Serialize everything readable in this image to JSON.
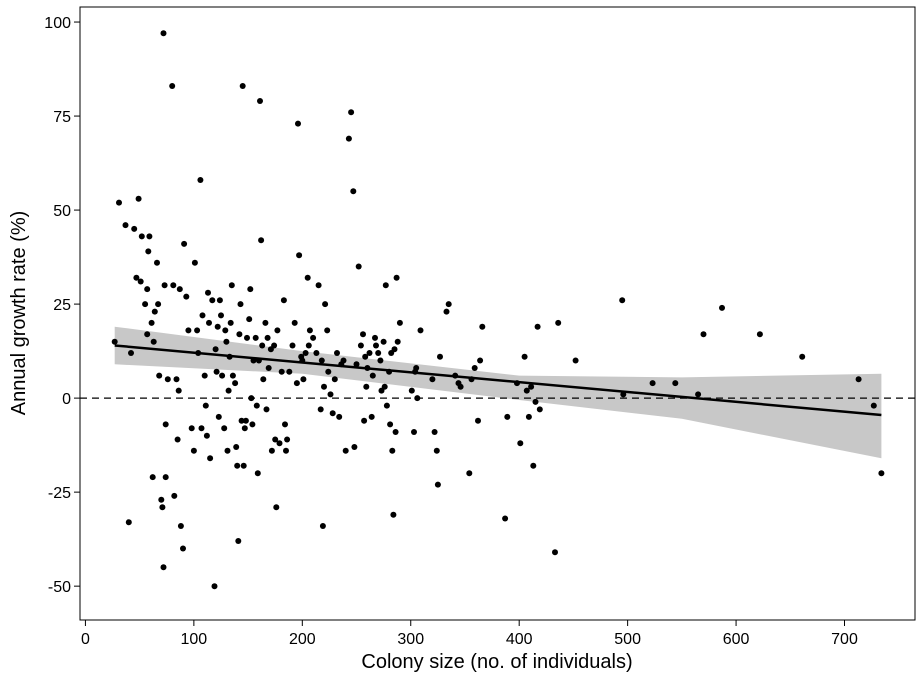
{
  "chart_data": {
    "type": "scatter",
    "title": "",
    "xlabel": "Colony size (no. of individuals)",
    "ylabel": "Annual growth rate (%)",
    "xlim": [
      -5,
      765
    ],
    "ylim": [
      -59,
      104
    ],
    "x_ticks": [
      0,
      100,
      200,
      300,
      400,
      500,
      600,
      700
    ],
    "y_ticks": [
      -50,
      -25,
      0,
      25,
      50,
      75,
      100
    ],
    "grid": false,
    "legend": "none",
    "reference_line": {
      "y": 0,
      "style": "dashed",
      "color": "#000000"
    },
    "fit_line": {
      "x_start": 27,
      "y_start": 14.0,
      "x_end": 734,
      "y_end": -4.5,
      "color": "#000000"
    },
    "confidence_band": {
      "x": [
        27,
        200,
        400,
        550,
        734
      ],
      "lower": [
        9.0,
        6.5,
        -0.5,
        -5.5,
        -16.0
      ],
      "upper": [
        19.0,
        12.5,
        6.0,
        5.5,
        6.5
      ],
      "color": "#c8c8c8"
    },
    "point_color": "#000000",
    "series": [
      {
        "points": [
          [
            27,
            15
          ],
          [
            31,
            52
          ],
          [
            37,
            46
          ],
          [
            40,
            -33
          ],
          [
            42,
            12
          ],
          [
            45,
            45
          ],
          [
            47,
            32
          ],
          [
            49,
            53
          ],
          [
            51,
            31
          ],
          [
            52,
            43
          ],
          [
            55,
            25
          ],
          [
            57,
            17
          ],
          [
            57,
            29
          ],
          [
            58,
            39
          ],
          [
            59,
            43
          ],
          [
            61,
            20
          ],
          [
            62,
            -21
          ],
          [
            63,
            15
          ],
          [
            64,
            23
          ],
          [
            66,
            36
          ],
          [
            67,
            25
          ],
          [
            68,
            6
          ],
          [
            70,
            -27
          ],
          [
            71,
            -29
          ],
          [
            72,
            -45
          ],
          [
            72,
            97
          ],
          [
            73,
            30
          ],
          [
            74,
            -21
          ],
          [
            74,
            -7
          ],
          [
            76,
            5
          ],
          [
            80,
            83
          ],
          [
            81,
            30
          ],
          [
            82,
            -26
          ],
          [
            84,
            5
          ],
          [
            85,
            -11
          ],
          [
            86,
            2
          ],
          [
            87,
            29
          ],
          [
            88,
            -34
          ],
          [
            90,
            -40
          ],
          [
            91,
            41
          ],
          [
            93,
            27
          ],
          [
            95,
            18
          ],
          [
            98,
            -8
          ],
          [
            100,
            -14
          ],
          [
            101,
            36
          ],
          [
            103,
            18
          ],
          [
            104,
            12
          ],
          [
            106,
            58
          ],
          [
            107,
            -8
          ],
          [
            108,
            22
          ],
          [
            110,
            6
          ],
          [
            111,
            -2
          ],
          [
            112,
            -10
          ],
          [
            113,
            28
          ],
          [
            114,
            20
          ],
          [
            115,
            -16
          ],
          [
            117,
            26
          ],
          [
            119,
            -50
          ],
          [
            120,
            13
          ],
          [
            121,
            7
          ],
          [
            122,
            19
          ],
          [
            123,
            -5
          ],
          [
            124,
            26
          ],
          [
            125,
            22
          ],
          [
            126,
            6
          ],
          [
            128,
            -8
          ],
          [
            129,
            18
          ],
          [
            130,
            15
          ],
          [
            131,
            -14
          ],
          [
            132,
            2
          ],
          [
            133,
            11
          ],
          [
            134,
            20
          ],
          [
            135,
            30
          ],
          [
            136,
            6
          ],
          [
            138,
            4
          ],
          [
            139,
            -13
          ],
          [
            140,
            -18
          ],
          [
            141,
            -38
          ],
          [
            142,
            17
          ],
          [
            143,
            25
          ],
          [
            144,
            -6
          ],
          [
            145,
            83
          ],
          [
            146,
            -18
          ],
          [
            147,
            -8
          ],
          [
            148,
            -6
          ],
          [
            149,
            16
          ],
          [
            151,
            21
          ],
          [
            152,
            29
          ],
          [
            153,
            0
          ],
          [
            154,
            -7
          ],
          [
            155,
            10
          ],
          [
            157,
            16
          ],
          [
            158,
            -2
          ],
          [
            159,
            -20
          ],
          [
            160,
            10
          ],
          [
            161,
            79
          ],
          [
            162,
            42
          ],
          [
            163,
            14
          ],
          [
            164,
            5
          ],
          [
            166,
            20
          ],
          [
            167,
            -3
          ],
          [
            168,
            16
          ],
          [
            169,
            8
          ],
          [
            171,
            13
          ],
          [
            172,
            -14
          ],
          [
            174,
            14
          ],
          [
            175,
            -11
          ],
          [
            176,
            -29
          ],
          [
            177,
            18
          ],
          [
            179,
            -12
          ],
          [
            181,
            7
          ],
          [
            183,
            26
          ],
          [
            184,
            -7
          ],
          [
            185,
            -14
          ],
          [
            186,
            -11
          ],
          [
            188,
            7
          ],
          [
            191,
            14
          ],
          [
            193,
            20
          ],
          [
            195,
            4
          ],
          [
            196,
            73
          ],
          [
            197,
            38
          ],
          [
            199,
            11
          ],
          [
            200,
            10
          ],
          [
            201,
            5
          ],
          [
            203,
            12
          ],
          [
            205,
            32
          ],
          [
            206,
            14
          ],
          [
            207,
            18
          ],
          [
            210,
            16
          ],
          [
            213,
            12
          ],
          [
            215,
            30
          ],
          [
            217,
            -3
          ],
          [
            218,
            10
          ],
          [
            219,
            -34
          ],
          [
            220,
            3
          ],
          [
            221,
            25
          ],
          [
            223,
            18
          ],
          [
            224,
            7
          ],
          [
            226,
            1
          ],
          [
            228,
            -4
          ],
          [
            230,
            5
          ],
          [
            232,
            12
          ],
          [
            234,
            -5
          ],
          [
            236,
            9
          ],
          [
            238,
            10
          ],
          [
            240,
            -14
          ],
          [
            243,
            69
          ],
          [
            245,
            76
          ],
          [
            247,
            55
          ],
          [
            248,
            -13
          ],
          [
            250,
            9
          ],
          [
            252,
            35
          ],
          [
            254,
            14
          ],
          [
            256,
            17
          ],
          [
            257,
            -6
          ],
          [
            258,
            11
          ],
          [
            259,
            3
          ],
          [
            260,
            8
          ],
          [
            262,
            12
          ],
          [
            264,
            -5
          ],
          [
            265,
            6
          ],
          [
            267,
            16
          ],
          [
            268,
            14
          ],
          [
            270,
            12
          ],
          [
            272,
            10
          ],
          [
            273,
            2
          ],
          [
            275,
            15
          ],
          [
            276,
            3
          ],
          [
            277,
            30
          ],
          [
            278,
            -2
          ],
          [
            280,
            7
          ],
          [
            281,
            -7
          ],
          [
            282,
            12
          ],
          [
            283,
            -14
          ],
          [
            284,
            -31
          ],
          [
            285,
            13
          ],
          [
            286,
            -9
          ],
          [
            287,
            32
          ],
          [
            288,
            15
          ],
          [
            290,
            20
          ],
          [
            301,
            2
          ],
          [
            303,
            -9
          ],
          [
            304,
            7
          ],
          [
            305,
            8
          ],
          [
            306,
            0
          ],
          [
            309,
            18
          ],
          [
            320,
            5
          ],
          [
            322,
            -9
          ],
          [
            324,
            -14
          ],
          [
            325,
            -23
          ],
          [
            327,
            11
          ],
          [
            333,
            23
          ],
          [
            335,
            25
          ],
          [
            341,
            6
          ],
          [
            344,
            4
          ],
          [
            346,
            3
          ],
          [
            354,
            -20
          ],
          [
            356,
            5
          ],
          [
            359,
            8
          ],
          [
            362,
            -6
          ],
          [
            364,
            10
          ],
          [
            366,
            19
          ],
          [
            387,
            -32
          ],
          [
            389,
            -5
          ],
          [
            398,
            4
          ],
          [
            401,
            -12
          ],
          [
            405,
            11
          ],
          [
            407,
            2
          ],
          [
            409,
            -5
          ],
          [
            411,
            3
          ],
          [
            413,
            -18
          ],
          [
            415,
            -1
          ],
          [
            417,
            19
          ],
          [
            419,
            -3
          ],
          [
            433,
            -41
          ],
          [
            436,
            20
          ],
          [
            452,
            10
          ],
          [
            495,
            26
          ],
          [
            496,
            1
          ],
          [
            523,
            4
          ],
          [
            544,
            4
          ],
          [
            565,
            1
          ],
          [
            570,
            17
          ],
          [
            587,
            24
          ],
          [
            622,
            17
          ],
          [
            661,
            11
          ],
          [
            713,
            5
          ],
          [
            727,
            -2
          ],
          [
            734,
            -20
          ]
        ]
      }
    ]
  }
}
